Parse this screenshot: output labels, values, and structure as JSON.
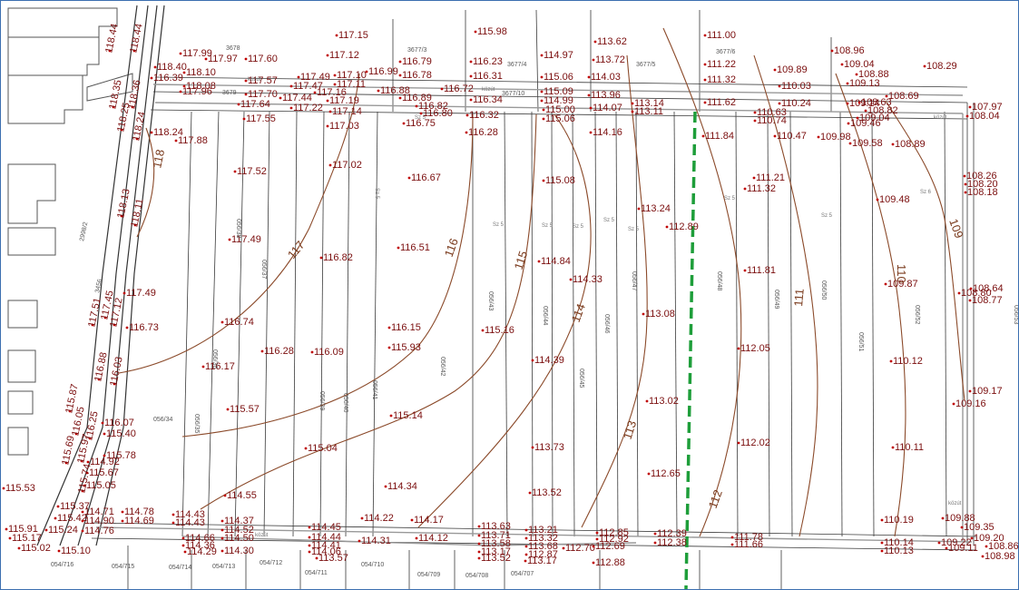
{
  "colors": {
    "elevation_text": "#7a0d0d",
    "point": "#c00000",
    "contour": "#8b4a2a",
    "parcel_line": "#3a3a3a",
    "boundary": "#999999",
    "proposed_line": "#1e9e3a",
    "frame": "#3c6fb0"
  },
  "elevation_points": [
    {
      "v": "117.15"
    },
    {
      "v": "115.98"
    },
    {
      "v": "113.62"
    },
    {
      "v": "111.00"
    },
    {
      "v": "108.96"
    },
    {
      "v": "117.99"
    },
    {
      "v": "117.97"
    },
    {
      "v": "117.60"
    },
    {
      "v": "117.12"
    },
    {
      "v": "114.97"
    },
    {
      "v": "113.72"
    },
    {
      "v": "109.04"
    },
    {
      "v": "108.29"
    },
    {
      "v": "118.40"
    },
    {
      "v": "118.10"
    },
    {
      "v": "116.79"
    },
    {
      "v": "116.23"
    },
    {
      "v": "111.22"
    },
    {
      "v": "109.89"
    },
    {
      "v": "108.88"
    },
    {
      "v": "116.39"
    },
    {
      "v": "116.99"
    },
    {
      "v": "116.78"
    },
    {
      "v": "116.31"
    },
    {
      "v": "115.06"
    },
    {
      "v": "114.03"
    },
    {
      "v": "109.13"
    },
    {
      "v": "118.08"
    },
    {
      "v": "117.57"
    },
    {
      "v": "117.49"
    },
    {
      "v": "117.10"
    },
    {
      "v": "111.32"
    },
    {
      "v": "110.03"
    },
    {
      "v": "117.96"
    },
    {
      "v": "117.70"
    },
    {
      "v": "117.47"
    },
    {
      "v": "117.11"
    },
    {
      "v": "116.88"
    },
    {
      "v": "116.72"
    },
    {
      "v": "115.09"
    },
    {
      "v": "113.96"
    },
    {
      "v": "108.69"
    },
    {
      "v": "117.64"
    },
    {
      "v": "117.44"
    },
    {
      "v": "117.16"
    },
    {
      "v": "116.89"
    },
    {
      "v": "116.34"
    },
    {
      "v": "114.99"
    },
    {
      "v": "113.14"
    },
    {
      "v": "111.62"
    },
    {
      "v": "110.24"
    },
    {
      "v": "109.14"
    },
    {
      "v": "108.63"
    },
    {
      "v": "107.97"
    },
    {
      "v": "117.22"
    },
    {
      "v": "117.19"
    },
    {
      "v": "116.82"
    },
    {
      "v": "115.00"
    },
    {
      "v": "114.07"
    },
    {
      "v": "113.11"
    },
    {
      "v": "110.63"
    },
    {
      "v": "108.82"
    },
    {
      "v": "117.14"
    },
    {
      "v": "116.80"
    },
    {
      "v": "116.32"
    },
    {
      "v": "115.06"
    },
    {
      "v": "110.74"
    },
    {
      "v": "109.04"
    },
    {
      "v": "108.04"
    },
    {
      "v": "117.55"
    },
    {
      "v": "116.75"
    },
    {
      "v": "109.46"
    },
    {
      "v": "117.03"
    },
    {
      "v": "116.28"
    },
    {
      "v": "114.16"
    },
    {
      "v": "111.84"
    },
    {
      "v": "110.47"
    },
    {
      "v": "109.98"
    },
    {
      "v": "109.58"
    },
    {
      "v": "108.89"
    },
    {
      "v": "118.24"
    },
    {
      "v": "117.88"
    },
    {
      "v": "117.02"
    },
    {
      "v": "117.52"
    },
    {
      "v": "116.67"
    },
    {
      "v": "115.08"
    },
    {
      "v": "111.21"
    },
    {
      "v": "111.32"
    },
    {
      "v": "108.26"
    },
    {
      "v": "108.20"
    },
    {
      "v": "108.18"
    },
    {
      "v": "113.24"
    },
    {
      "v": "109.48"
    },
    {
      "v": "112.89"
    },
    {
      "v": "117.49"
    },
    {
      "v": "116.51"
    },
    {
      "v": "116.82"
    },
    {
      "v": "114.84"
    },
    {
      "v": "114.33"
    },
    {
      "v": "111.81"
    },
    {
      "v": "109.87"
    },
    {
      "v": "108.80"
    },
    {
      "v": "108.64"
    },
    {
      "v": "108.77"
    },
    {
      "v": "117.49"
    },
    {
      "v": "113.08"
    },
    {
      "v": "116.73"
    },
    {
      "v": "116.74"
    },
    {
      "v": "116.15"
    },
    {
      "v": "115.16"
    },
    {
      "v": "116.28"
    },
    {
      "v": "116.09"
    },
    {
      "v": "115.93"
    },
    {
      "v": "112.05"
    },
    {
      "v": "114.39"
    },
    {
      "v": "116.17"
    },
    {
      "v": "110.12"
    },
    {
      "v": "109.17"
    },
    {
      "v": "109.16"
    },
    {
      "v": "113.02"
    },
    {
      "v": "115.57"
    },
    {
      "v": "115.14"
    },
    {
      "v": "116.07"
    },
    {
      "v": "115.40"
    },
    {
      "v": "113.73"
    },
    {
      "v": "112.02"
    },
    {
      "v": "110.11"
    },
    {
      "v": "115.04"
    },
    {
      "v": "115.78"
    },
    {
      "v": "114.92"
    },
    {
      "v": "115.67"
    },
    {
      "v": "112.65"
    },
    {
      "v": "115.05"
    },
    {
      "v": "114.34"
    },
    {
      "v": "113.52"
    },
    {
      "v": "114.55"
    },
    {
      "v": "115.53"
    },
    {
      "v": "115.37"
    },
    {
      "v": "115.42"
    },
    {
      "v": "114.71"
    },
    {
      "v": "114.78"
    },
    {
      "v": "114.43"
    },
    {
      "v": "114.22"
    },
    {
      "v": "114.17"
    },
    {
      "v": "110.19"
    },
    {
      "v": "109.88"
    },
    {
      "v": "114.90"
    },
    {
      "v": "114.69"
    },
    {
      "v": "114.43"
    },
    {
      "v": "114.37"
    },
    {
      "v": "113.63"
    },
    {
      "v": "113.21"
    },
    {
      "v": "109.35"
    },
    {
      "v": "115.91"
    },
    {
      "v": "115.24"
    },
    {
      "v": "114.76"
    },
    {
      "v": "114.52"
    },
    {
      "v": "114.45"
    },
    {
      "v": "113.71"
    },
    {
      "v": "113.32"
    },
    {
      "v": "112.85"
    },
    {
      "v": "112.39"
    },
    {
      "v": "111.78"
    },
    {
      "v": "109.20"
    },
    {
      "v": "115.17"
    },
    {
      "v": "114.66"
    },
    {
      "v": "114.50"
    },
    {
      "v": "114.44"
    },
    {
      "v": "114.31"
    },
    {
      "v": "114.12"
    },
    {
      "v": "113.58"
    },
    {
      "v": "113.68"
    },
    {
      "v": "112.92"
    },
    {
      "v": "112.38"
    },
    {
      "v": "111.66"
    },
    {
      "v": "110.14"
    },
    {
      "v": "109.22"
    },
    {
      "v": "108.86"
    },
    {
      "v": "115.02"
    },
    {
      "v": "115.10"
    },
    {
      "v": "114.36"
    },
    {
      "v": "114.30"
    },
    {
      "v": "114.41"
    },
    {
      "v": "114.06"
    },
    {
      "v": "113.17"
    },
    {
      "v": "112.87"
    },
    {
      "v": "112.70"
    },
    {
      "v": "112.69"
    },
    {
      "v": "110.13"
    },
    {
      "v": "109.11"
    },
    {
      "v": "108.98"
    },
    {
      "v": "114.29"
    },
    {
      "v": "113.57"
    },
    {
      "v": "113.52"
    },
    {
      "v": "113.17"
    },
    {
      "v": "112.88"
    },
    {
      "v": "118.44"
    },
    {
      "v": "118.44"
    },
    {
      "v": "118.36"
    },
    {
      "v": "118.35"
    },
    {
      "v": "118.25"
    },
    {
      "v": "118.24"
    },
    {
      "v": "118.13"
    },
    {
      "v": "118.11"
    },
    {
      "v": "117.51"
    },
    {
      "v": "117.45"
    },
    {
      "v": "117.12"
    },
    {
      "v": "116.88"
    },
    {
      "v": "116.03"
    },
    {
      "v": "115.87"
    },
    {
      "v": "116.05"
    },
    {
      "v": "116.25"
    },
    {
      "v": "115.69"
    },
    {
      "v": "115.97"
    },
    {
      "v": "115.74"
    }
  ],
  "contour_labels": [
    {
      "v": "118"
    },
    {
      "v": "117"
    },
    {
      "v": "116"
    },
    {
      "v": "115"
    },
    {
      "v": "114"
    },
    {
      "v": "113"
    },
    {
      "v": "112"
    },
    {
      "v": "111"
    },
    {
      "v": "110"
    },
    {
      "v": "109"
    }
  ],
  "parcel_labels": [
    {
      "v": "3678"
    },
    {
      "v": "3677/3"
    },
    {
      "v": "3677/4"
    },
    {
      "v": "3677/5"
    },
    {
      "v": "3677/6"
    },
    {
      "v": "3679"
    },
    {
      "v": "3677/10"
    },
    {
      "v": "056/37"
    },
    {
      "v": "056/38"
    },
    {
      "v": "056/39"
    },
    {
      "v": "056/40"
    },
    {
      "v": "056/41"
    },
    {
      "v": "056/42"
    },
    {
      "v": "056/43"
    },
    {
      "v": "056/44"
    },
    {
      "v": "056/45"
    },
    {
      "v": "056/46"
    },
    {
      "v": "056/47"
    },
    {
      "v": "056/48"
    },
    {
      "v": "056/49"
    },
    {
      "v": "056/50"
    },
    {
      "v": "056/51"
    },
    {
      "v": "056/52"
    },
    {
      "v": "056/53"
    },
    {
      "v": "056/34"
    },
    {
      "v": "056/35"
    },
    {
      "v": "056/36"
    },
    {
      "v": "3456"
    },
    {
      "v": "2998/2"
    },
    {
      "v": "054/716"
    },
    {
      "v": "054/715"
    },
    {
      "v": "054/714"
    },
    {
      "v": "054/713"
    },
    {
      "v": "054/712"
    },
    {
      "v": "054/711"
    },
    {
      "v": "054/710"
    },
    {
      "v": "054/709"
    },
    {
      "v": "054/708"
    },
    {
      "v": "054/707"
    }
  ],
  "road_labels": [
    {
      "v": "közút"
    },
    {
      "v": "közút"
    },
    {
      "v": "közút"
    },
    {
      "v": "közút"
    },
    {
      "v": "közút"
    },
    {
      "v": "Sz 5"
    },
    {
      "v": "Sz 5"
    },
    {
      "v": "Sz 5"
    },
    {
      "v": "Sz 5"
    },
    {
      "v": "Sz 5"
    },
    {
      "v": "Sz 5"
    },
    {
      "v": "Sz 5"
    },
    {
      "v": "Sz 5"
    },
    {
      "v": "Sz 5"
    },
    {
      "v": "Sz 6"
    }
  ]
}
